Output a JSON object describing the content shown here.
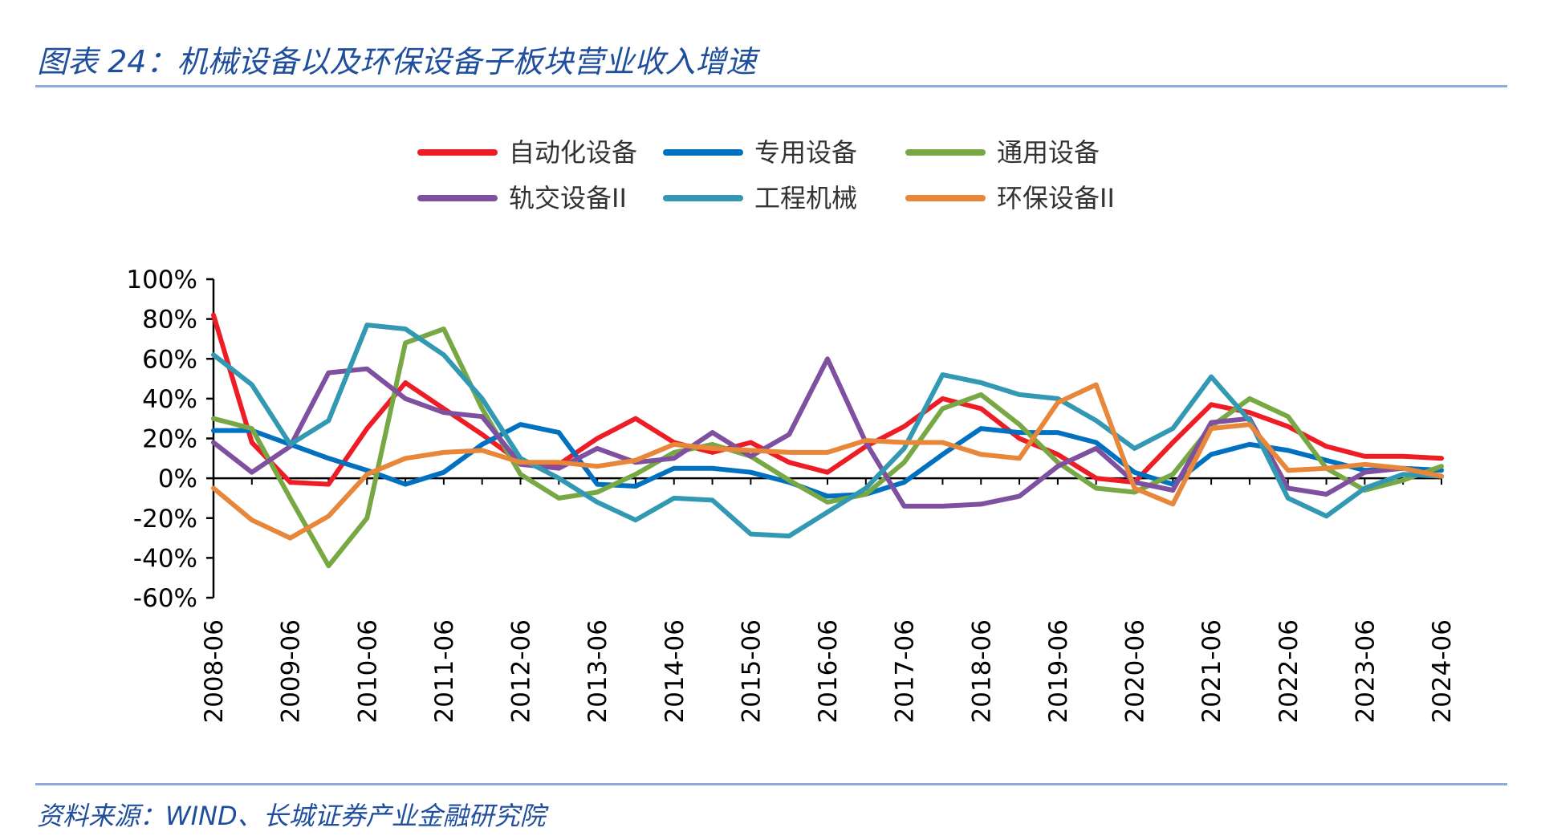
{
  "figure": {
    "title": "图表 24：机械设备以及环保设备子板块营业收入增速",
    "source": "资料来源：WIND、长城证券产业金融研究院"
  },
  "chart_data": {
    "type": "line",
    "ylim": [
      -60,
      100
    ],
    "yticks": [
      100,
      80,
      60,
      40,
      20,
      0,
      -20,
      -40,
      -60
    ],
    "ytick_labels": [
      "100%",
      "80%",
      "60%",
      "40%",
      "20%",
      "0%",
      "-20%",
      "-40%",
      "-60%"
    ],
    "x": [
      "2008-06",
      "2008-12",
      "2009-06",
      "2009-12",
      "2010-06",
      "2010-12",
      "2011-06",
      "2011-12",
      "2012-06",
      "2012-12",
      "2013-06",
      "2013-12",
      "2014-06",
      "2014-12",
      "2015-06",
      "2015-12",
      "2016-06",
      "2016-12",
      "2017-06",
      "2017-12",
      "2018-06",
      "2018-12",
      "2019-06",
      "2019-12",
      "2020-06",
      "2020-12",
      "2021-06",
      "2021-12",
      "2022-06",
      "2022-12",
      "2023-06",
      "2023-12",
      "2024-06"
    ],
    "xtick_labels": [
      "2008-06",
      "2009-06",
      "2010-06",
      "2011-06",
      "2012-06",
      "2013-06",
      "2014-06",
      "2015-06",
      "2016-06",
      "2017-06",
      "2018-06",
      "2019-06",
      "2020-06",
      "2021-06",
      "2022-06",
      "2023-06",
      "2024-06"
    ],
    "legend_position": "top",
    "grid": false,
    "series": [
      {
        "name": "自动化设备",
        "color": "#ee1c25",
        "values": [
          82,
          18,
          -2,
          -3,
          25,
          48,
          35,
          22,
          8,
          7,
          20,
          30,
          18,
          13,
          18,
          8,
          3,
          16,
          26,
          40,
          35,
          20,
          12,
          0,
          -2,
          18,
          37,
          33,
          26,
          16,
          11,
          11,
          10
        ]
      },
      {
        "name": "专用设备",
        "color": "#0070c0",
        "values": [
          24,
          24,
          17,
          10,
          4,
          -3,
          3,
          17,
          27,
          23,
          -3,
          -4,
          5,
          5,
          3,
          -2,
          -9,
          -8,
          -2,
          12,
          25,
          23,
          23,
          18,
          3,
          -3,
          12,
          17,
          14,
          9,
          4,
          5,
          4
        ]
      },
      {
        "name": "通用设备",
        "color": "#77a844",
        "values": [
          30,
          25,
          -10,
          -44,
          -20,
          68,
          75,
          35,
          2,
          -10,
          -7,
          2,
          13,
          17,
          11,
          -1,
          -12,
          -8,
          8,
          35,
          42,
          27,
          8,
          -5,
          -7,
          2,
          26,
          40,
          31,
          5,
          -6,
          -1,
          6
        ]
      },
      {
        "name": "轨交设备II",
        "color": "#7f4fa0",
        "values": [
          18,
          3,
          16,
          53,
          55,
          40,
          33,
          31,
          7,
          5,
          15,
          8,
          10,
          23,
          11,
          22,
          60,
          18,
          -14,
          -14,
          -13,
          -9,
          6,
          15,
          -2,
          -6,
          28,
          30,
          -5,
          -8,
          3,
          5,
          1
        ]
      },
      {
        "name": "工程机械",
        "color": "#3399b3",
        "values": [
          62,
          47,
          17,
          29,
          77,
          75,
          62,
          40,
          10,
          0,
          -12,
          -21,
          -10,
          -11,
          -28,
          -29,
          -17,
          -5,
          15,
          52,
          48,
          42,
          40,
          29,
          15,
          25,
          51,
          29,
          -10,
          -19,
          -5,
          2,
          1
        ]
      },
      {
        "name": "环保设备II",
        "color": "#e8873a",
        "values": [
          -5,
          -21,
          -30,
          -19,
          2,
          10,
          13,
          14,
          8,
          8,
          6,
          9,
          17,
          15,
          14,
          13,
          13,
          19,
          18,
          18,
          12,
          10,
          38,
          47,
          -5,
          -13,
          25,
          27,
          4,
          5,
          7,
          5,
          1
        ]
      }
    ]
  }
}
